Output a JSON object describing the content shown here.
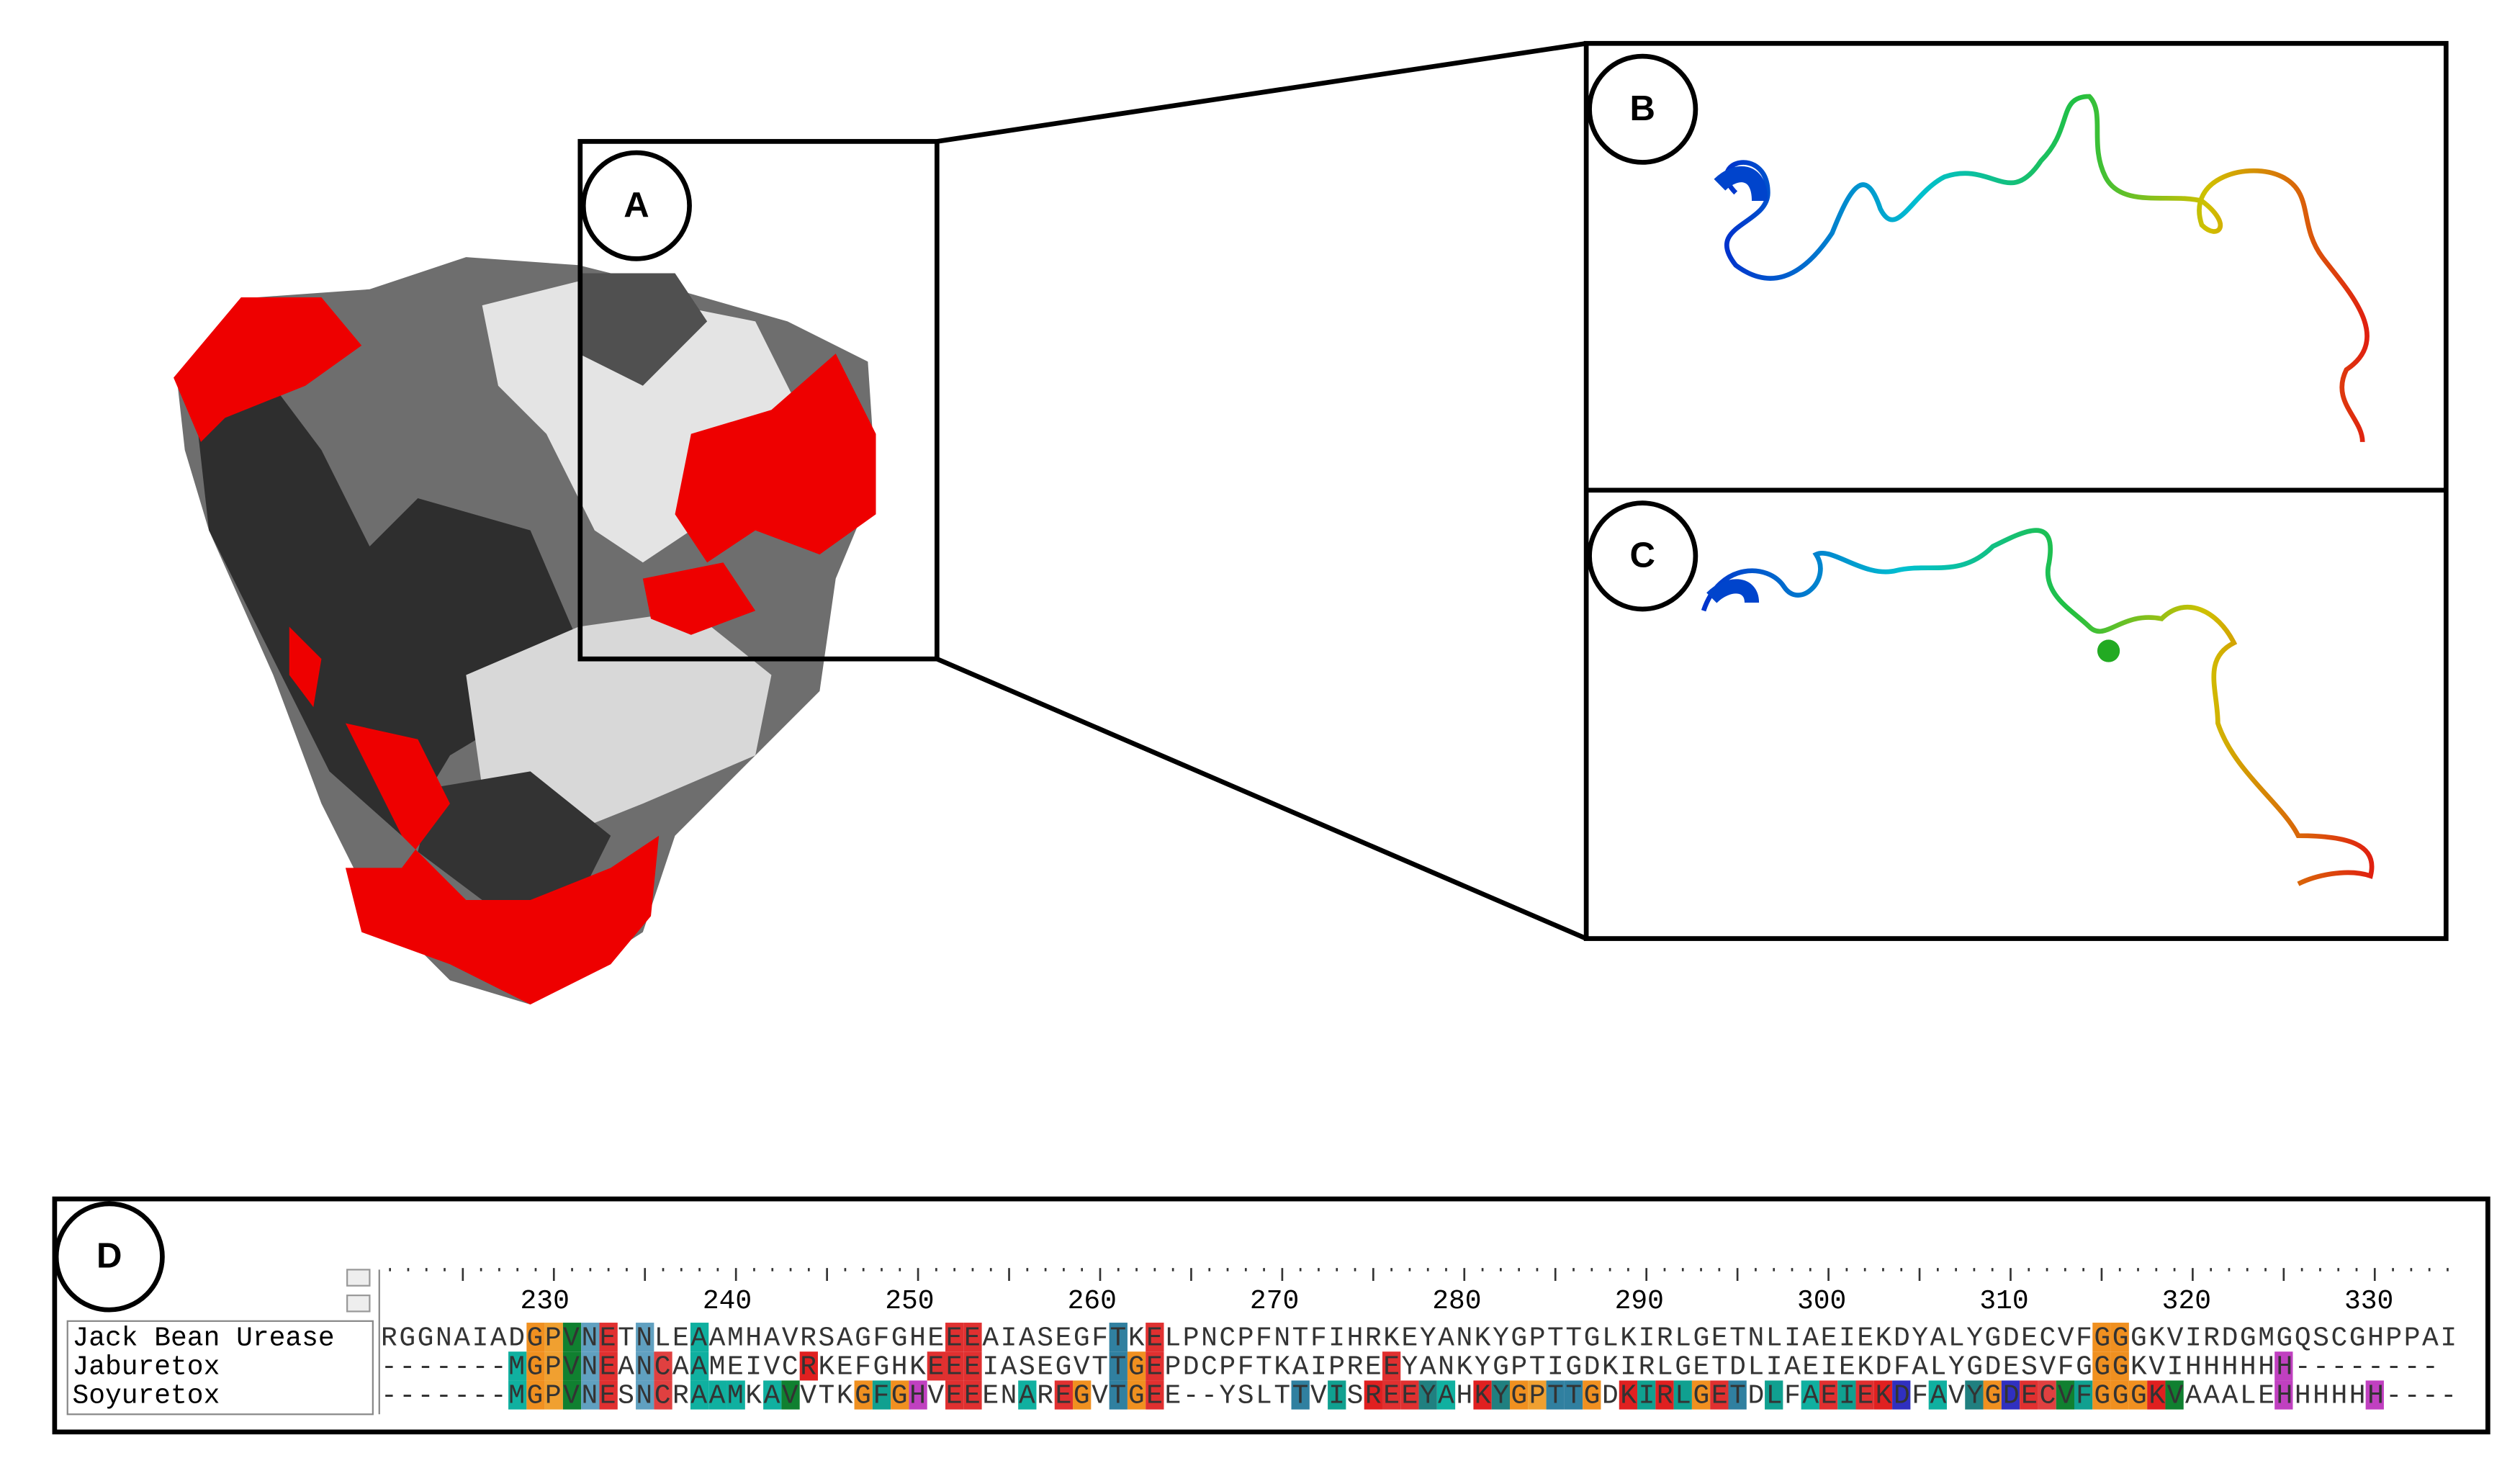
{
  "panels": {
    "a": "A",
    "b": "B",
    "c": "C",
    "d": "D"
  },
  "alignment": {
    "ruler": [
      230,
      240,
      250,
      260,
      270,
      280,
      290,
      300,
      310,
      320,
      330
    ],
    "rows": [
      {
        "name": "Jack Bean Urease",
        "sequence": "RGGNAIADGPVNETNLEAAMHAVRSAGFGHEEEAIASEGFTKELPNCPFNTFIHRKEYANKYGPTTGLKIRLGETNLIAEIEKDYALYGDECVFGGGKVIRDGMGQSCGHPPAI"
      },
      {
        "name": "Jaburetox",
        "sequence": "-------MGPVNEANCAAMEIVCRKEFGHKEEEIASEGVTTGEPDCPFTKAIPREEYANKYGPTIGDKIRLGETDLIAEIEKDFALYGDESVFGGGKVIHHHHHH--------"
      },
      {
        "name": "Soyuretox",
        "sequence": "-------MGPVNESNCRAAMKAVVTKGFGHVEEENAREGVTGEE--YSLTTVISREEYAHKYGPTTGDKIRLGETDLFAEIEKDFAVYGDECVFGGGKVAAALEHHHHHH----"
      }
    ]
  }
}
